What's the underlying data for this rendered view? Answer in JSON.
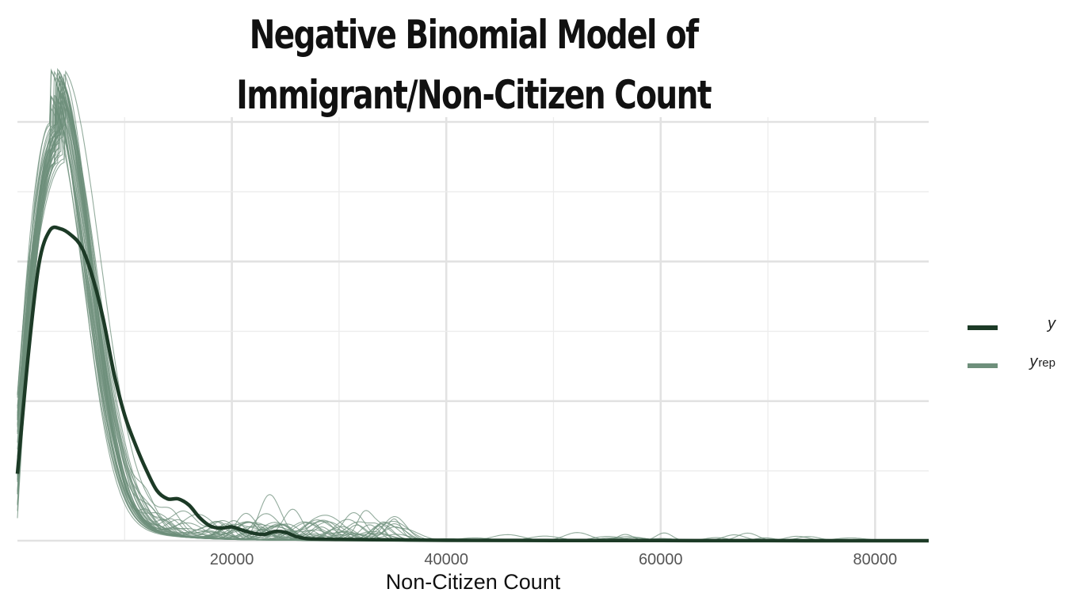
{
  "chart_data": {
    "type": "line",
    "title": "Negative Binomial Model of Immigrant/Non-Citizen Count",
    "title_lines": [
      "Negative Binomial Model of",
      "Immigrant/Non-Citizen Count"
    ],
    "xlabel": "Non-Citizen Count",
    "ylabel": "",
    "xlim": [
      0,
      85000
    ],
    "ylim": [
      0,
      1.0
    ],
    "x_ticks": [
      20000,
      40000,
      60000,
      80000
    ],
    "x_tick_labels": [
      "20000",
      "40000",
      "60000",
      "80000"
    ],
    "y_ticks_shown": false,
    "grid": true,
    "legend_position": "right",
    "legend": [
      {
        "key": "y",
        "label": "y",
        "subscript": "",
        "color": "#1c3a26"
      },
      {
        "key": "yrep",
        "label": "y",
        "subscript": "rep",
        "color": "#6e8f7b"
      }
    ],
    "series": [
      {
        "name": "y",
        "color": "#1c3a26",
        "x": [
          0,
          1000,
          2000,
          3000,
          4000,
          5000,
          6000,
          7000,
          8000,
          9000,
          10000,
          11000,
          12000,
          13000,
          14000,
          15000,
          16000,
          17000,
          18000,
          19000,
          20000,
          21000,
          22000,
          23000,
          24000,
          25000,
          26000,
          27000,
          28000,
          30000,
          35000,
          40000,
          50000,
          60000,
          70000,
          85000
        ],
        "y": [
          0.16,
          0.44,
          0.66,
          0.74,
          0.745,
          0.73,
          0.7,
          0.63,
          0.53,
          0.4,
          0.3,
          0.23,
          0.17,
          0.12,
          0.1,
          0.1,
          0.085,
          0.055,
          0.035,
          0.03,
          0.033,
          0.025,
          0.018,
          0.015,
          0.022,
          0.02,
          0.01,
          0.005,
          0.004,
          0.003,
          0.002,
          0.001,
          0.0005,
          0.0003,
          0.0001,
          0.0
        ]
      }
    ],
    "replicates": {
      "name": "yrep",
      "color": "#6e8f7b",
      "count": 40,
      "peak_range": [
        0.9,
        1.0
      ],
      "peak_x_range": [
        3000,
        4500
      ]
    }
  }
}
